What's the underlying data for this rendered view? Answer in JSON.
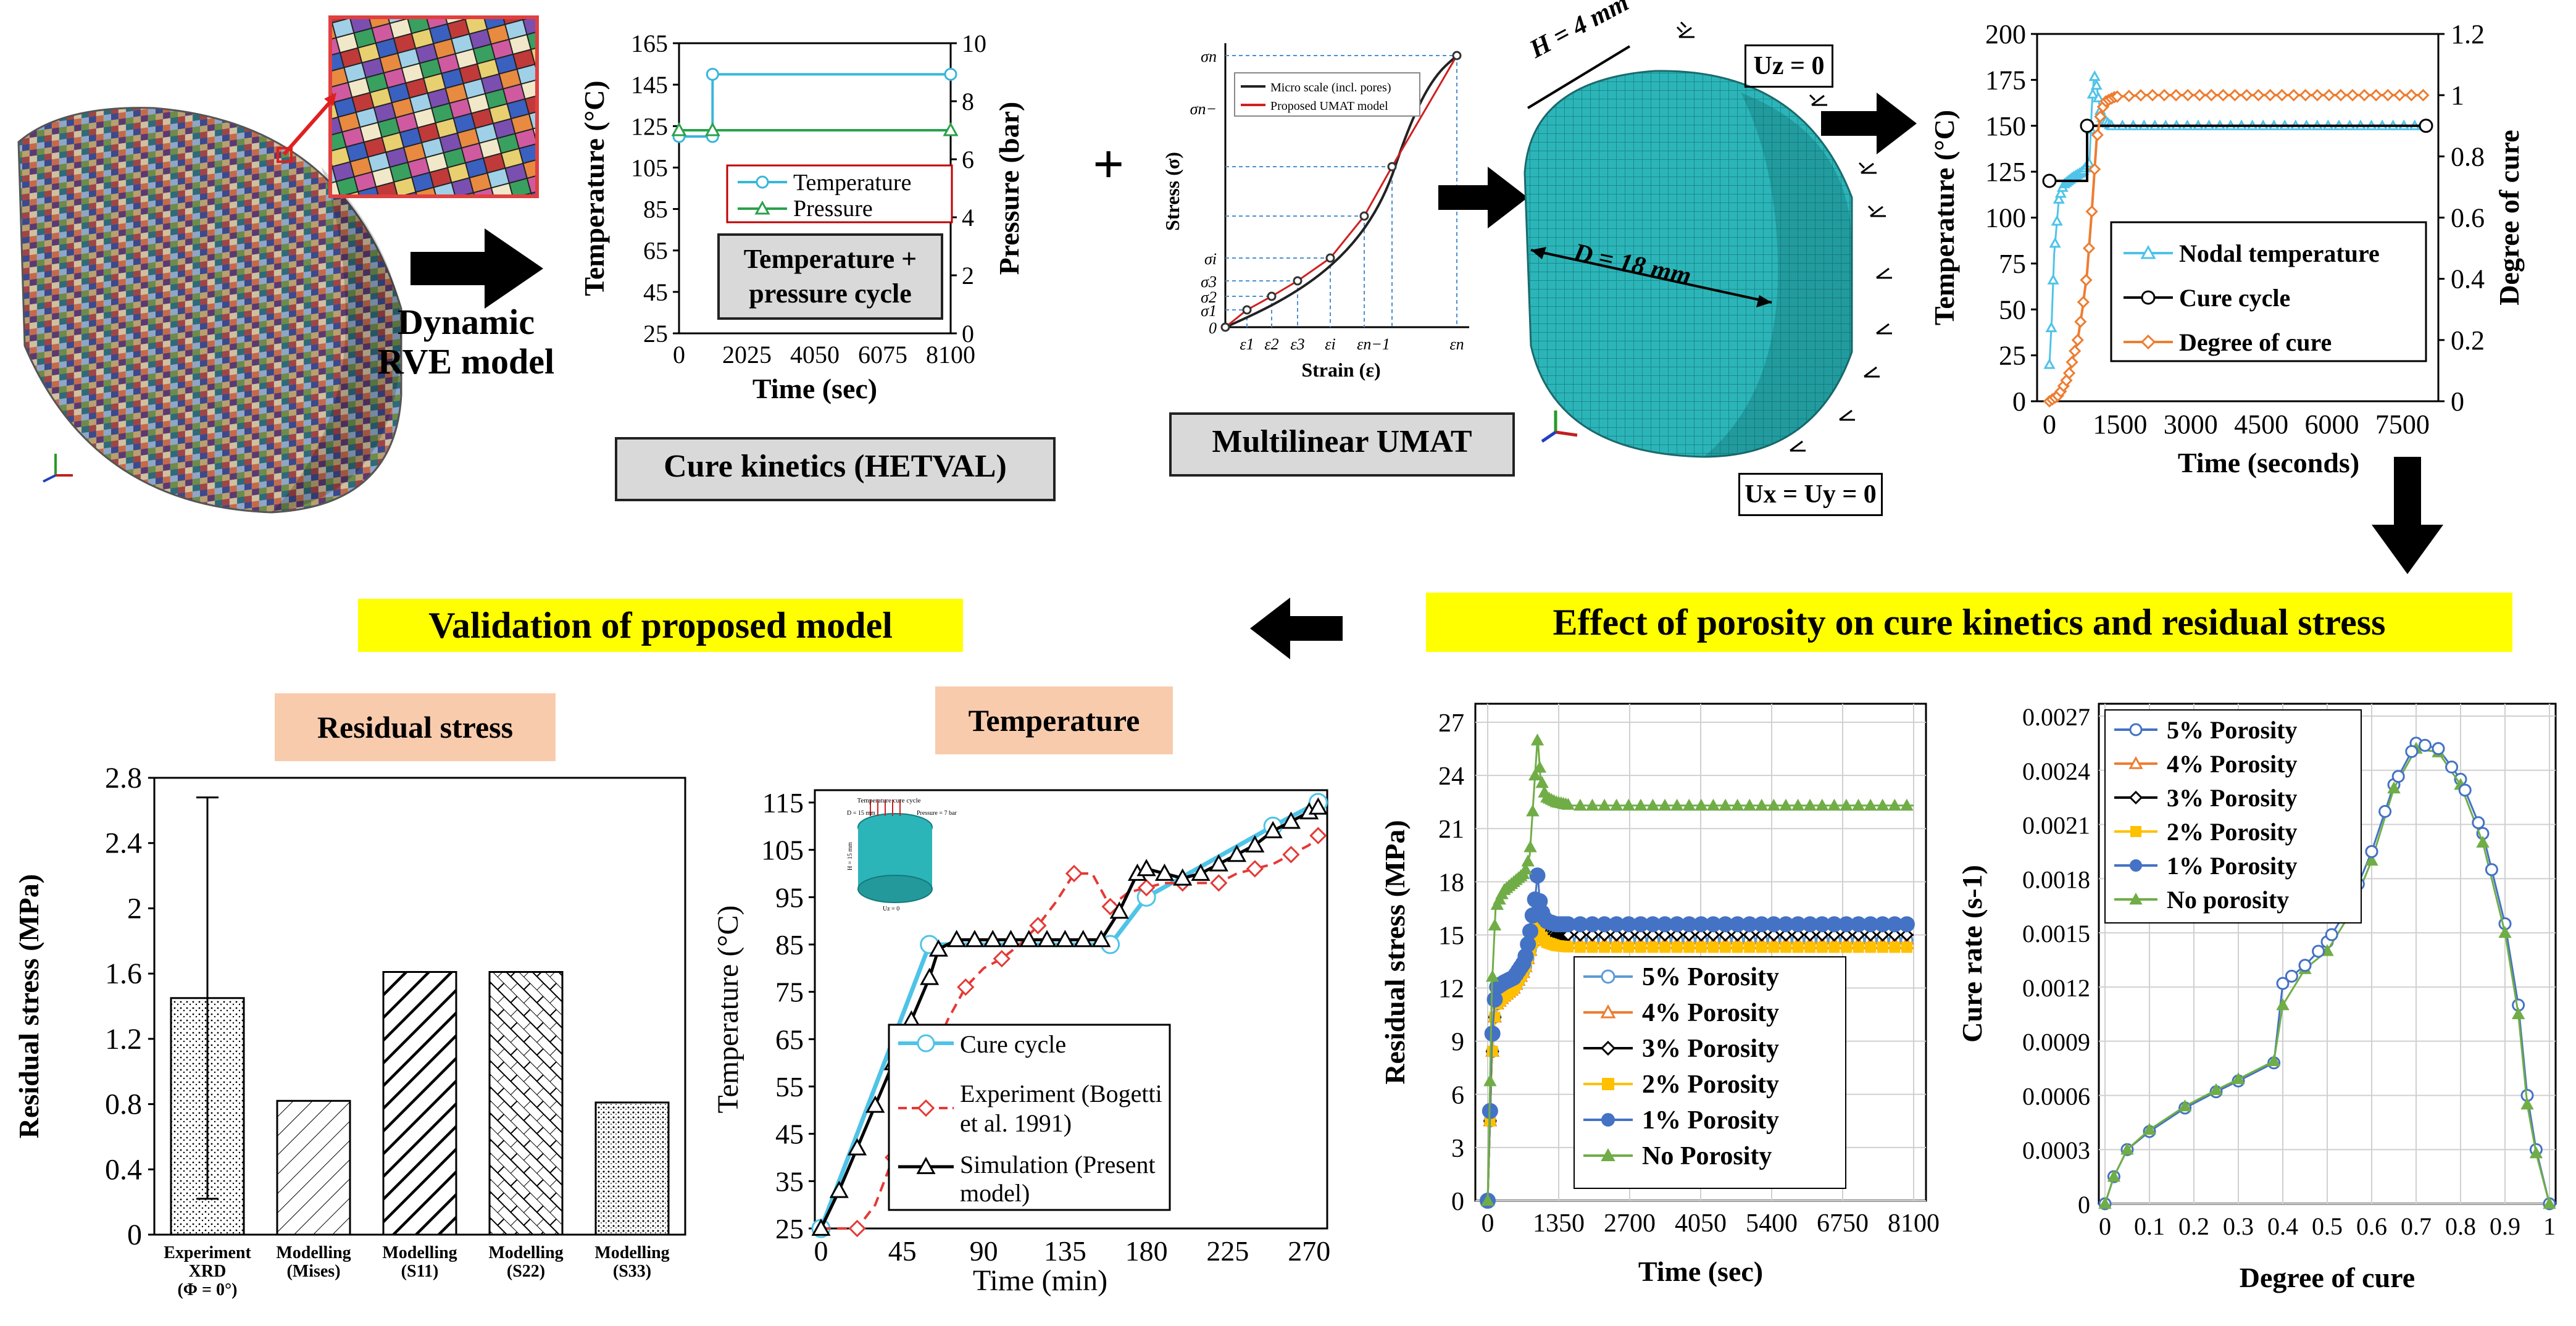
{
  "colors": {
    "highlight": "#ffff00",
    "peach": "#f8cbad",
    "mesh": "#2cb5b8",
    "blue": "#4472c4",
    "orange": "#ed7d31",
    "green": "#70ad47",
    "red": "#e53935",
    "cyan": "#4fc3e8"
  },
  "rve": {
    "label": "Dynamic RVE model"
  },
  "cure_panel": {
    "ylabel_left": "Temperature (°C)",
    "ylabel_right": "Pressure (bar)",
    "xlabel": "Time (sec)",
    "y_left_ticks": [
      "25",
      "45",
      "65",
      "85",
      "105",
      "125",
      "145",
      "165"
    ],
    "y_right_ticks": [
      "0",
      "2",
      "4",
      "6",
      "8",
      "10"
    ],
    "x_ticks": [
      "0",
      "2025",
      "4050",
      "6075",
      "8100"
    ],
    "legend": [
      "Temperature",
      "Pressure"
    ],
    "caption_box": "Temperature + pressure cycle",
    "title_box": "Cure kinetics (HETVAL)",
    "chart_data": {
      "type": "line",
      "x": [
        0,
        1000,
        1000,
        8100
      ],
      "series": [
        {
          "name": "Temperature",
          "values": [
            120,
            120,
            150,
            150
          ],
          "unit": "°C"
        },
        {
          "name": "Pressure",
          "values": [
            7,
            7,
            7,
            7
          ],
          "unit": "bar"
        }
      ],
      "xlim": [
        0,
        8100
      ],
      "ylim_left": [
        25,
        165
      ],
      "ylim_right": [
        0,
        10
      ]
    }
  },
  "plus_sign": "+",
  "umat_panel": {
    "ylabel": "Stress (σ)",
    "xlabel": "Strain (ε)",
    "y_ticks": [
      "σn",
      "σn−",
      "σi",
      "σ3",
      "σ2",
      "σ1",
      "0"
    ],
    "x_ticks": [
      "ε1",
      "ε2",
      "ε3",
      "εi",
      "εn−1",
      "εn"
    ],
    "legend": [
      "Micro scale (incl. pores)",
      "Proposed UMAT model"
    ],
    "title_box": "Multilinear UMAT"
  },
  "cylinder": {
    "h_label": "H = 4 mm",
    "d_label": "D = 18 mm",
    "uz_label": "Uz = 0",
    "uxy_label": "Ux = Uy = 0"
  },
  "nodal_panel": {
    "ylabel_left": "Temperature (°C)",
    "ylabel_right": "Degree of cure",
    "xlabel": "Time (seconds)",
    "y_left_ticks": [
      "0",
      "25",
      "50",
      "75",
      "100",
      "125",
      "150",
      "175",
      "200"
    ],
    "y_right_ticks": [
      "0",
      "0.2",
      "0.4",
      "0.6",
      "0.8",
      "1",
      "1.2"
    ],
    "x_ticks": [
      "0",
      "1500",
      "3000",
      "4500",
      "6000",
      "7500"
    ],
    "legend": [
      "Nodal temperature",
      "Cure cycle",
      "Degree of cure"
    ],
    "chart_data": {
      "type": "line",
      "series": [
        {
          "name": "Nodal temperature",
          "x": [
            0,
            50,
            100,
            200,
            300,
            500,
            700,
            850,
            900,
            950,
            1000,
            1100,
            1300,
            1600,
            2500,
            4000,
            6000,
            8000
          ],
          "values": [
            20,
            45,
            80,
            110,
            118,
            122,
            125,
            130,
            160,
            178,
            172,
            155,
            150,
            150,
            150,
            150,
            150,
            150
          ]
        },
        {
          "name": "Cure cycle",
          "x": [
            0,
            800,
            800,
            8000
          ],
          "values": [
            120,
            120,
            150,
            150
          ]
        },
        {
          "name": "Degree of cure",
          "x": [
            0,
            200,
            400,
            600,
            700,
            800,
            900,
            1000,
            1100,
            1200,
            1400,
            2000,
            4000,
            6000,
            8000
          ],
          "values": [
            0,
            0.02,
            0.08,
            0.2,
            0.3,
            0.42,
            0.62,
            0.85,
            0.95,
            0.98,
            0.995,
            1.0,
            1.0,
            1.0,
            1.0
          ]
        }
      ],
      "xlim": [
        0,
        8000
      ],
      "ylim_left": [
        0,
        200
      ],
      "ylim_right": [
        0,
        1.2
      ]
    }
  },
  "validation_heading": "Validation of proposed model",
  "effect_heading": "Effect of porosity on cure kinetics and residual stress",
  "residual_bar": {
    "title": "Residual stress",
    "ylabel": "Residual stress (MPa)",
    "y_ticks": [
      "0",
      "0.4",
      "0.8",
      "1.2",
      "1.6",
      "2",
      "2.4",
      "2.8"
    ],
    "categories": [
      "Experiment XRD (Φ = 0°)",
      "Modelling (Mises)",
      "Modelling (S11)",
      "Modelling (S22)",
      "Modelling (S33)"
    ],
    "cat_lines": [
      [
        "Experiment",
        "XRD",
        "(Φ = 0°)"
      ],
      [
        "Modelling",
        "(Mises)"
      ],
      [
        "Modelling",
        "(S11)"
      ],
      [
        "Modelling",
        "(S22)"
      ],
      [
        "Modelling",
        "(S33)"
      ]
    ],
    "chart_data": {
      "type": "bar",
      "categories": [
        "Experiment XRD (Φ = 0°)",
        "Modelling (Mises)",
        "Modelling (S11)",
        "Modelling (S22)",
        "Modelling (S33)"
      ],
      "values": [
        1.45,
        0.82,
        1.61,
        1.61,
        0.81
      ],
      "error_upper": [
        2.68,
        null,
        null,
        null,
        null
      ],
      "error_lower": [
        0.22,
        null,
        null,
        null,
        null
      ],
      "ylim": [
        0,
        2.8
      ],
      "ylabel": "Residual stress (MPa)"
    }
  },
  "temperature_panel": {
    "title": "Temperature",
    "ylabel": "Temperature (°C)",
    "xlabel": "Time (min)",
    "y_ticks": [
      "25",
      "35",
      "45",
      "55",
      "65",
      "75",
      "85",
      "95",
      "105",
      "115"
    ],
    "x_ticks": [
      "0",
      "45",
      "90",
      "135",
      "180",
      "225",
      "270"
    ],
    "legend": [
      "Cure cycle",
      "Experiment (Bogetti et al. 1991)",
      "Simulation (Present model)"
    ],
    "legend_lines": [
      [
        "Cure cycle"
      ],
      [
        "Experiment (Bogetti",
        "et al. 1991)"
      ],
      [
        "Simulation (Present",
        "model)"
      ]
    ],
    "inset": {
      "t1": "Temperature cure cycle",
      "t2": "D = 15 mm",
      "t3": "Pressure = 7 bar",
      "t4": "H = 15 mm",
      "t5": "Uz = 0"
    },
    "chart_data": {
      "type": "line",
      "series": [
        {
          "name": "Cure cycle",
          "x": [
            0,
            60,
            160,
            180,
            250,
            275
          ],
          "values": [
            25,
            85,
            85,
            95,
            110,
            115
          ]
        },
        {
          "name": "Experiment (Bogetti et al. 1991)",
          "x": [
            0,
            20,
            30,
            40,
            50,
            60,
            70,
            80,
            90,
            100,
            110,
            120,
            130,
            140,
            150,
            160,
            170,
            180,
            190,
            200,
            210,
            220,
            230,
            240,
            250,
            260,
            270,
            275
          ],
          "values": [
            25,
            25,
            30,
            40,
            49,
            60,
            69,
            76,
            80,
            82,
            85,
            89,
            94,
            100,
            100,
            93,
            96,
            97,
            98,
            98,
            98,
            98,
            100,
            101,
            102,
            104,
            106,
            108
          ]
        },
        {
          "name": "Simulation (Present model)",
          "x": [
            0,
            10,
            20,
            30,
            40,
            50,
            60,
            65,
            75,
            85,
            95,
            105,
            115,
            125,
            135,
            145,
            155,
            165,
            175,
            180,
            190,
            200,
            210,
            220,
            230,
            240,
            250,
            260,
            270,
            275
          ],
          "values": [
            25,
            33,
            42,
            51,
            60,
            69,
            78,
            84,
            86,
            86,
            86,
            86,
            86,
            86,
            86,
            86,
            86,
            92,
            100,
            101,
            100,
            99,
            100,
            102,
            104,
            106,
            109,
            111,
            113,
            114
          ]
        }
      ],
      "xlim": [
        0,
        280
      ],
      "ylim": [
        25,
        115
      ]
    }
  },
  "porosity_stress": {
    "ylabel": "Residual stress (MPa)",
    "xlabel": "Time (sec)",
    "y_ticks": [
      "0",
      "3",
      "6",
      "9",
      "12",
      "15",
      "18",
      "21",
      "24",
      "27"
    ],
    "x_ticks": [
      "0",
      "1350",
      "2700",
      "4050",
      "5400",
      "6750",
      "8100"
    ],
    "legend": [
      "5% Porosity",
      "4% Porosity",
      "3% Porosity",
      "2% Porosity",
      "1% Porosity",
      "No Porosity"
    ],
    "chart_data": {
      "type": "line",
      "x": [
        0,
        80,
        150,
        300,
        500,
        700,
        800,
        900,
        950,
        1000,
        1100,
        1300,
        1600,
        2500,
        4000,
        6000,
        8100
      ],
      "series": [
        {
          "name": "5% Porosity",
          "values": [
            0,
            8,
            11,
            11.5,
            12,
            13,
            14,
            15.5,
            16.5,
            15.5,
            15,
            14.8,
            14.7,
            14.7,
            14.7,
            14.7,
            14.7
          ]
        },
        {
          "name": "4% Porosity",
          "values": [
            0,
            8,
            11,
            11.5,
            12,
            13,
            14,
            15.2,
            16,
            15.2,
            14.8,
            14.6,
            14.5,
            14.5,
            14.5,
            14.5,
            14.5
          ]
        },
        {
          "name": "3% Porosity",
          "values": [
            0,
            8,
            11,
            11.7,
            12.2,
            13.2,
            14.2,
            15.5,
            16.5,
            15.6,
            15.2,
            15,
            15,
            15,
            15,
            15,
            15
          ]
        },
        {
          "name": "2% Porosity",
          "values": [
            0,
            8,
            11,
            11.5,
            12,
            13,
            14,
            15,
            15.8,
            15,
            14.6,
            14.4,
            14.3,
            14.3,
            14.3,
            14.3,
            14.3
          ]
        },
        {
          "name": "1% Porosity",
          "values": [
            0,
            9,
            12,
            12.3,
            12.6,
            13.5,
            15,
            17,
            18.5,
            16.5,
            15.8,
            15.6,
            15.6,
            15.6,
            15.6,
            15.6,
            15.6
          ]
        },
        {
          "name": "No Porosity",
          "values": [
            0,
            12,
            16.5,
            17.5,
            18,
            18.5,
            19.5,
            24,
            26.2,
            24,
            22.8,
            22.5,
            22.3,
            22.3,
            22.3,
            22.3,
            22.3
          ]
        }
      ],
      "xlim": [
        0,
        8100
      ],
      "ylim": [
        0,
        27
      ]
    }
  },
  "porosity_cure": {
    "ylabel": "Cure rate (s-1)",
    "xlabel": "Degree of cure",
    "y_ticks": [
      "0",
      "0.0003",
      "0.0006",
      "0.0009",
      "0.0012",
      "0.0015",
      "0.0018",
      "0.0021",
      "0.0024",
      "0.0027"
    ],
    "x_ticks": [
      "0",
      "0.1",
      "0.2",
      "0.3",
      "0.4",
      "0.5",
      "0.6",
      "0.7",
      "0.8",
      "0.9",
      "1"
    ],
    "legend": [
      "5% Porosity",
      "4% Porosity",
      "3% Porosity",
      "2% Porosity",
      "1% Porosity",
      "No porosity"
    ],
    "chart_data": {
      "type": "line",
      "x": [
        0,
        0.02,
        0.05,
        0.1,
        0.18,
        0.25,
        0.3,
        0.38,
        0.4,
        0.45,
        0.5,
        0.55,
        0.6,
        0.65,
        0.7,
        0.75,
        0.8,
        0.85,
        0.9,
        0.93,
        0.95,
        0.97,
        1.0
      ],
      "series": [
        {
          "name": "5% Porosity",
          "values": [
            0,
            0.00015,
            0.0003,
            0.0004,
            0.00053,
            0.00062,
            0.00068,
            0.00078,
            0.00122,
            0.00132,
            0.00145,
            0.00165,
            0.00195,
            0.00232,
            0.00255,
            0.00252,
            0.00235,
            0.00205,
            0.00155,
            0.0011,
            0.0006,
            0.0003,
            0
          ]
        },
        {
          "name": "No porosity",
          "values": [
            0,
            0.00015,
            0.0003,
            0.00041,
            0.00054,
            0.00063,
            0.00069,
            0.00079,
            0.0011,
            0.0013,
            0.0014,
            0.0016,
            0.0019,
            0.0023,
            0.00252,
            0.0025,
            0.00232,
            0.002,
            0.0015,
            0.00105,
            0.00055,
            0.00028,
            0
          ]
        }
      ],
      "xlim": [
        0,
        1
      ],
      "ylim": [
        0,
        0.0027
      ]
    }
  }
}
